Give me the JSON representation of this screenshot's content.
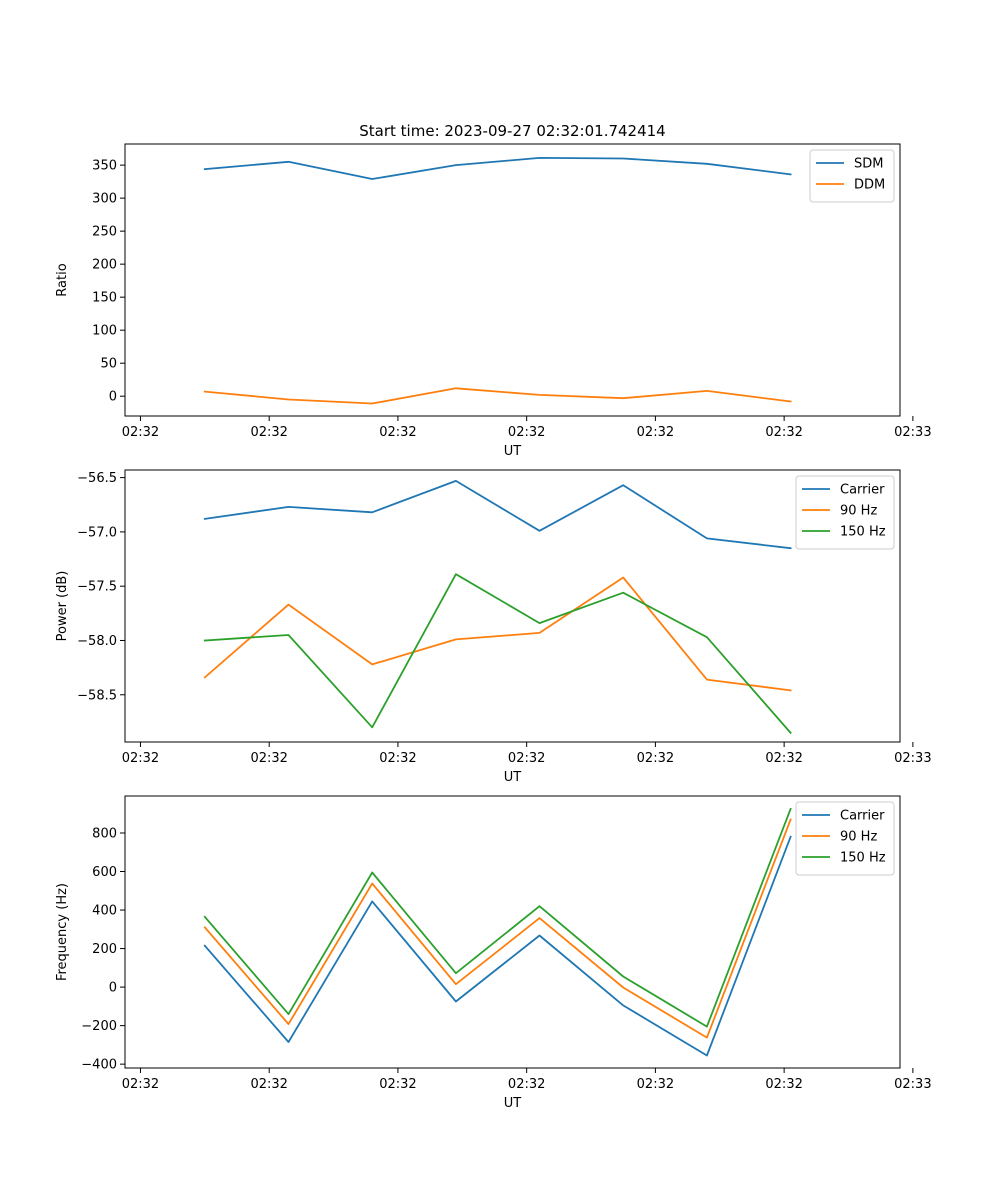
{
  "chart_data": [
    {
      "type": "line",
      "title": "Start time: 2023-09-27 02:32:01.742414",
      "xlabel": "UT",
      "ylabel": "Ratio",
      "xticks": [
        "02:32",
        "02:32",
        "02:32",
        "02:32",
        "02:32",
        "02:32",
        "02:33"
      ],
      "xlim": [
        -0.12,
        5.9
      ],
      "x": [
        0.5,
        1.15,
        1.8,
        2.45,
        3.1,
        3.75,
        4.4,
        5.05
      ],
      "ylim": [
        -30,
        382
      ],
      "yticks": [
        0,
        50,
        100,
        150,
        200,
        250,
        300,
        350
      ],
      "legend": "top-right",
      "series": [
        {
          "name": "SDM",
          "color": "#1f77b4",
          "values": [
            344,
            355,
            329,
            350,
            361,
            360,
            352,
            336
          ]
        },
        {
          "name": "DDM",
          "color": "#ff7f0e",
          "values": [
            7,
            -5,
            -11,
            12,
            2,
            -3,
            8,
            -8
          ]
        }
      ]
    },
    {
      "type": "line",
      "title": "",
      "xlabel": "UT",
      "ylabel": "Power (dB)",
      "xticks": [
        "02:32",
        "02:32",
        "02:32",
        "02:32",
        "02:32",
        "02:32",
        "02:33"
      ],
      "xlim": [
        -0.12,
        5.9
      ],
      "x": [
        0.5,
        1.15,
        1.8,
        2.45,
        3.1,
        3.75,
        4.4,
        5.05
      ],
      "ylim": [
        -58.935,
        -56.43
      ],
      "yticks": [
        -56.5,
        -57.0,
        -57.5,
        -58.0,
        -58.5
      ],
      "ytick_labels": [
        "−56.5",
        "−57.0",
        "−57.5",
        "−58.0",
        "−58.5"
      ],
      "legend": "top-right",
      "series": [
        {
          "name": "Carrier",
          "color": "#1f77b4",
          "values": [
            -56.88,
            -56.77,
            -56.82,
            -56.53,
            -56.99,
            -56.57,
            -57.06,
            -57.15
          ]
        },
        {
          "name": "90 Hz",
          "color": "#ff7f0e",
          "values": [
            -58.34,
            -57.67,
            -58.22,
            -57.99,
            -57.93,
            -57.42,
            -58.36,
            -58.46
          ]
        },
        {
          "name": "150 Hz",
          "color": "#2ca02c",
          "values": [
            -58.0,
            -57.95,
            -58.8,
            -57.39,
            -57.84,
            -57.56,
            -57.97,
            -58.85
          ]
        }
      ]
    },
    {
      "type": "line",
      "title": "",
      "xlabel": "UT",
      "ylabel": "Frequency (Hz)",
      "xticks": [
        "02:32",
        "02:32",
        "02:32",
        "02:32",
        "02:32",
        "02:32",
        "02:33"
      ],
      "xlim": [
        -0.12,
        5.9
      ],
      "x": [
        0.5,
        1.15,
        1.8,
        2.45,
        3.1,
        3.75,
        4.4,
        5.05
      ],
      "ylim": [
        -420,
        992
      ],
      "yticks": [
        -400,
        -200,
        0,
        200,
        400,
        600,
        800
      ],
      "ytick_labels": [
        "−400",
        "−200",
        "0",
        "200",
        "400",
        "600",
        "800"
      ],
      "legend": "top-right",
      "series": [
        {
          "name": "Carrier",
          "color": "#1f77b4",
          "values": [
            215,
            -285,
            445,
            -75,
            268,
            -95,
            -355,
            780
          ]
        },
        {
          "name": "90 Hz",
          "color": "#ff7f0e",
          "values": [
            310,
            -192,
            538,
            15,
            358,
            -2,
            -262,
            870
          ]
        },
        {
          "name": "150 Hz",
          "color": "#2ca02c",
          "values": [
            365,
            -140,
            595,
            72,
            420,
            55,
            -205,
            925
          ]
        }
      ]
    }
  ]
}
